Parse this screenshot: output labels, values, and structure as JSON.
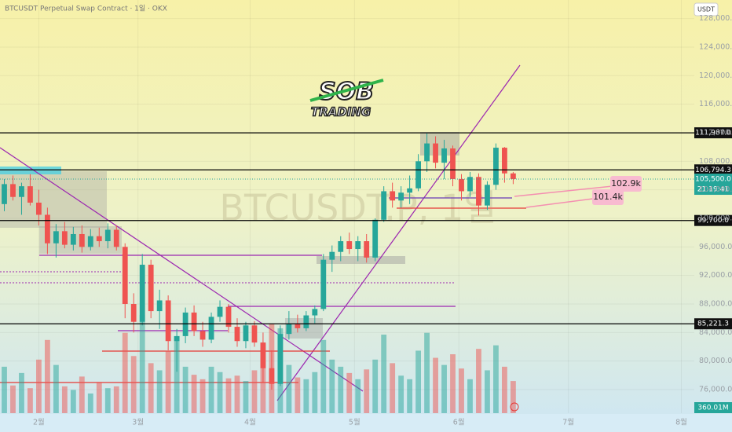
{
  "chart_data": {
    "type": "candlestick",
    "title": "BTCUSDT Perpetual Swap Contract · 1일 · OKX",
    "watermark": "BTCUSDT.P, 1일",
    "currency_button": "USDT",
    "logo": {
      "top": "SOB",
      "bottom": "TRADING"
    },
    "up_color": "#26a69a",
    "down_color": "#ef5350",
    "xlim": [
      -0.5,
      80
    ],
    "xticks": [
      {
        "value": 4,
        "label": "2월"
      },
      {
        "value": 15.5,
        "label": "3월"
      },
      {
        "value": 28.5,
        "label": "4월"
      },
      {
        "value": 40.6,
        "label": "5월"
      },
      {
        "value": 52.7,
        "label": "6월"
      },
      {
        "value": 65.4,
        "label": "7월"
      },
      {
        "value": 78.5,
        "label": "8월"
      }
    ],
    "ylim": [
      72700,
      130600
    ],
    "yticks": [
      {
        "value": 76000,
        "label": "76,000.0"
      },
      {
        "value": 80000,
        "label": "80,000.0"
      },
      {
        "value": 84000,
        "label": "84,000.0"
      },
      {
        "value": 88000,
        "label": "88,000.0"
      },
      {
        "value": 92000,
        "label": "92,000.0"
      },
      {
        "value": 96000,
        "label": "96,000.0"
      },
      {
        "value": 100000,
        "label": "100,000.0"
      },
      {
        "value": 104000,
        "label": "104,000.0"
      },
      {
        "value": 108000,
        "label": "108,000.0"
      },
      {
        "value": 112000,
        "label": "112,000.0"
      },
      {
        "value": 116000,
        "label": "116,000.0"
      },
      {
        "value": 120000,
        "label": "120,000.0"
      },
      {
        "value": 124000,
        "label": "124,000.0"
      },
      {
        "value": 128000,
        "label": "128,000.0"
      }
    ],
    "levels": [
      {
        "value": 111987,
        "label": "111,987.0"
      },
      {
        "value": 106794.3,
        "label": "106,794.3"
      },
      {
        "value": 99700,
        "label": "99,700.0"
      },
      {
        "value": 85221.3,
        "label": "85,221.3"
      }
    ],
    "last_price": {
      "value": 105500,
      "label": "105,500.0"
    },
    "countdown": "21:19:41",
    "annotations": [
      "102.9k",
      "101.4k"
    ],
    "volume_label": "360.01M",
    "open": [
      102000,
      104800,
      103000,
      104500,
      102200,
      100500,
      96500,
      98200,
      96300,
      97800,
      96000,
      97500,
      96800,
      98400,
      96000,
      88000,
      85500,
      93500,
      87000,
      88500,
      82800,
      83500,
      86800,
      84200,
      83000,
      86200,
      87600,
      84800,
      82800,
      85000,
      82600,
      79000,
      76800,
      83800,
      85200,
      84600,
      86400,
      87300,
      94200,
      95300,
      96800,
      95700,
      96800,
      94500,
      99800,
      103800,
      102500,
      103600,
      104200,
      108000,
      110500,
      107800,
      109800,
      105500,
      103800,
      105800,
      101800,
      104700,
      109900,
      106300
    ],
    "high": [
      105500,
      106000,
      105000,
      106200,
      104000,
      101500,
      99200,
      99500,
      98800,
      99000,
      98500,
      98700,
      99300,
      99000,
      96500,
      89500,
      95000,
      94200,
      90000,
      89200,
      84500,
      87500,
      87800,
      85500,
      86800,
      88500,
      88000,
      86000,
      85500,
      85600,
      84000,
      81500,
      85000,
      87000,
      86500,
      87000,
      87800,
      95000,
      96200,
      97500,
      98000,
      97500,
      97800,
      100000,
      104500,
      105000,
      104500,
      106000,
      109000,
      111900,
      111500,
      111000,
      110200,
      106200,
      106500,
      106300,
      105200,
      110500,
      110000,
      106500
    ],
    "low": [
      101000,
      102500,
      100500,
      101800,
      99000,
      95000,
      94500,
      95800,
      95500,
      95200,
      95500,
      96000,
      95800,
      95500,
      86000,
      84000,
      85000,
      86000,
      84500,
      81500,
      78500,
      82500,
      83500,
      82000,
      82500,
      85500,
      84000,
      82000,
      81800,
      82000,
      77000,
      76000,
      76500,
      83000,
      84000,
      84200,
      85300,
      87000,
      92500,
      94000,
      95000,
      94000,
      93800,
      94000,
      99500,
      101500,
      101500,
      102000,
      103800,
      106500,
      107000,
      105500,
      104500,
      102500,
      103000,
      100400,
      101200,
      104000,
      105000,
      104800
    ],
    "close": [
      104800,
      103000,
      104500,
      102200,
      100500,
      96500,
      98200,
      96300,
      97800,
      96000,
      97500,
      96800,
      98400,
      96000,
      88000,
      85500,
      93500,
      87000,
      88500,
      82800,
      83500,
      86800,
      84200,
      83000,
      86200,
      87600,
      84800,
      82800,
      85000,
      82600,
      79000,
      76800,
      83800,
      85200,
      84600,
      86400,
      87300,
      94200,
      95300,
      96800,
      95700,
      96800,
      94500,
      99800,
      103800,
      102500,
      103600,
      104200,
      108000,
      110500,
      107800,
      109800,
      105500,
      103800,
      105800,
      101800,
      104700,
      109900,
      106300,
      105500
    ],
    "volume": [
      520,
      310,
      450,
      280,
      600,
      820,
      540,
      300,
      260,
      410,
      220,
      350,
      280,
      300,
      900,
      640,
      1100,
      560,
      480,
      700,
      860,
      520,
      430,
      380,
      520,
      460,
      390,
      420,
      360,
      480,
      780,
      1000,
      950,
      540,
      400,
      380,
      460,
      820,
      600,
      520,
      450,
      380,
      490,
      600,
      880,
      560,
      420,
      380,
      700,
      900,
      620,
      540,
      660,
      500,
      380,
      720,
      480,
      760,
      520,
      360
    ]
  }
}
